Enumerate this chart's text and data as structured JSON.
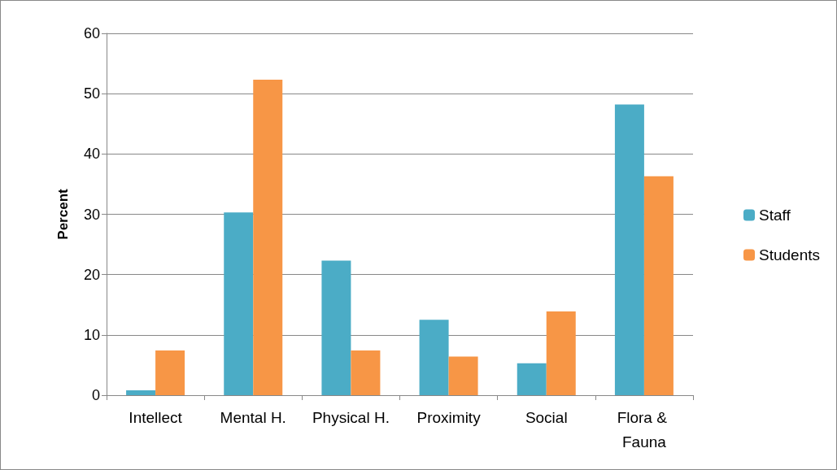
{
  "chart_data": {
    "type": "bar",
    "ylabel": "Percent",
    "categories": [
      "Intellect",
      "Mental H.",
      "Physical H.",
      "Proximity",
      "Social",
      "Flora & Fauna"
    ],
    "series": [
      {
        "name": "Staff",
        "color": "#4bacc6",
        "values": [
          0.8,
          30.3,
          22.3,
          12.5,
          5.3,
          48.2
        ]
      },
      {
        "name": "Students",
        "color": "#f79646",
        "values": [
          7.4,
          52.3,
          7.4,
          6.4,
          13.9,
          36.3
        ]
      }
    ],
    "ylim": [
      0,
      60
    ],
    "yticks": [
      0,
      10,
      20,
      30,
      40,
      50,
      60
    ],
    "grid": "y",
    "legend": "right"
  }
}
